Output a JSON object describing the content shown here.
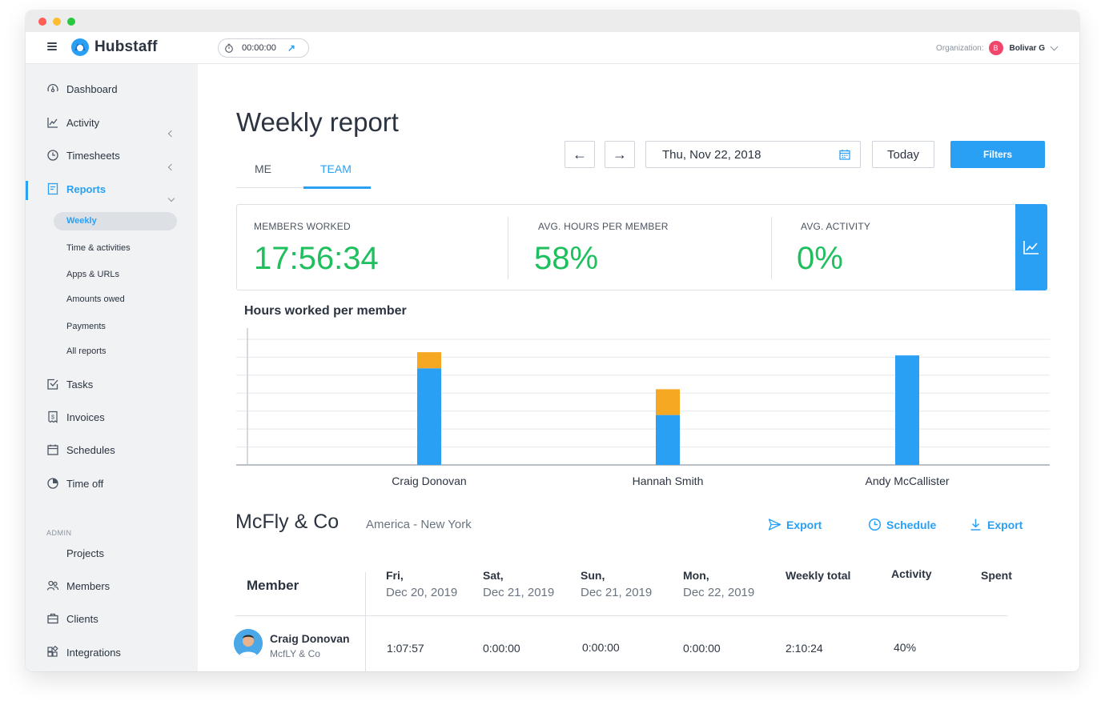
{
  "app": {
    "name": "Hubstaff"
  },
  "topbar": {
    "timer": "00:00:00",
    "org_label": "Organization:",
    "org_avatar": "B",
    "org_name": "Bolivar G"
  },
  "sidebar": {
    "items": {
      "dashboard": "Dashboard",
      "activity": "Activity",
      "timesheets": "Timesheets",
      "reports": "Reports",
      "tasks": "Tasks",
      "invoices": "Invoices",
      "schedules": "Schedules",
      "timeoff": "Time off",
      "projects": "Projects",
      "members": "Members",
      "clients": "Clients",
      "integrations": "Integrations"
    },
    "reports_sub": {
      "weekly": "Weekly",
      "time_activities": "Time & activities",
      "apps_urls": "Apps & URLs",
      "amounts_owed": "Amounts owed",
      "payments": "Payments",
      "all_reports": "All reports"
    },
    "admin_label": "ADMIN"
  },
  "page": {
    "title": "Weekly report",
    "tabs": {
      "me": "ME",
      "team": "TEAM"
    },
    "date": "Thu, Nov 22, 2018",
    "today": "Today",
    "filters": "Filters"
  },
  "stats": {
    "members_worked": {
      "label": "MEMBERS WORKED",
      "value": "17:56:34"
    },
    "avg_hours": {
      "label": "AVG. HOURS PER MEMBER",
      "value": "58%"
    },
    "avg_activity": {
      "label": "AVG. ACTIVITY",
      "value": "0%"
    }
  },
  "chart_title": "Hours worked per member",
  "chart_data": {
    "type": "bar",
    "stacked": true,
    "categories": [
      "Craig Donovan",
      "Hannah Smith",
      "Andy McCallister"
    ],
    "series": [
      {
        "color": "#2aa0f5",
        "values": [
          6.0,
          3.1,
          6.8
        ]
      },
      {
        "color": "#f7a823",
        "values": [
          1.0,
          1.6,
          0
        ]
      }
    ],
    "ylim": [
      0,
      7.8
    ],
    "grid": true
  },
  "team": {
    "name": "McFly & Co",
    "timezone": "America - New York",
    "actions": {
      "export1": "Export",
      "schedule": "Schedule",
      "export2": "Export"
    }
  },
  "table": {
    "headers": {
      "member": "Member",
      "fri": {
        "day": "Fri,",
        "date": "Dec 20, 2019"
      },
      "sat": {
        "day": "Sat,",
        "date": "Dec 21, 2019"
      },
      "sun": {
        "day": "Sun,",
        "date": "Dec 21, 2019"
      },
      "mon": {
        "day": "Mon,",
        "date": "Dec 22, 2019"
      },
      "weekly_total": "Weekly total",
      "activity": "Activity",
      "spent": "Spent"
    },
    "rows": [
      {
        "name": "Craig Donovan",
        "org": "McfLY & Co",
        "fri": "1:07:57",
        "sat": "0:00:00",
        "sun": "0:00:00",
        "mon": "0:00:00",
        "total": "2:10:24",
        "activity": "40%"
      }
    ]
  },
  "colors": {
    "accent": "#2aa0f5",
    "positive": "#1fbf5e",
    "idle": "#f7a823"
  }
}
